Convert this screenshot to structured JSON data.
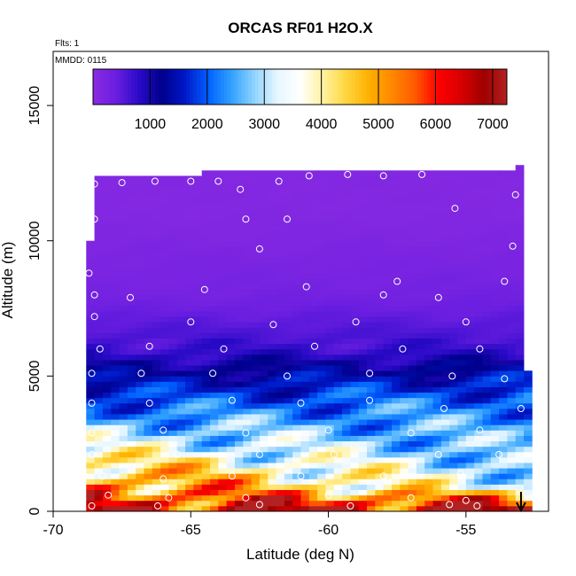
{
  "chart_data": {
    "type": "heatmap",
    "title": "ORCAS RF01 H2O.X",
    "flights_note": "Flts: 1",
    "date_note": "MMDD: 0115",
    "xlabel": "Latitude (deg N)",
    "ylabel": "Altitude (m)",
    "xlim": [
      -70,
      -52
    ],
    "ylim": [
      0,
      17000
    ],
    "x_ticks": [
      -70,
      -65,
      -60,
      -55
    ],
    "x_tick_labels": [
      "-70",
      "-65",
      "-60",
      "-55"
    ],
    "y_ticks": [
      0,
      5000,
      10000,
      15000
    ],
    "y_tick_labels": [
      "0",
      "5000",
      "10000",
      "15000"
    ],
    "colorbar": {
      "range": [
        0,
        7250
      ],
      "tick_values": [
        1000,
        2000,
        3000,
        4000,
        5000,
        6000,
        7000
      ],
      "tick_labels": [
        "1000",
        "2000",
        "3000",
        "4000",
        "5000",
        "6000",
        "7000"
      ],
      "colors": [
        "#8b2be2",
        "#6a1ee0",
        "#2a0ac8",
        "#00008b",
        "#0018c8",
        "#0060ff",
        "#30a0ff",
        "#8fd2ff",
        "#e6f6ff",
        "#ffffff",
        "#fff2a0",
        "#ffd640",
        "#ffb000",
        "#ff8800",
        "#ff5a00",
        "#ff0000",
        "#d80000",
        "#a00000",
        "#b22222"
      ]
    },
    "data_region": {
      "lat_range": [
        -68.8,
        -52.7
      ],
      "alt_top_profile": [
        {
          "lat": -68.8,
          "alt_top": 10000
        },
        {
          "lat": -68.5,
          "alt_top": 12400
        },
        {
          "lat": -64.8,
          "alt_top": 12400
        },
        {
          "lat": -64.7,
          "alt_top": 12600
        },
        {
          "lat": -53.2,
          "alt_top": 12600
        },
        {
          "lat": -53.2,
          "alt_top": 12800
        },
        {
          "lat": -53.0,
          "alt_top": 12800
        },
        {
          "lat": -53.0,
          "alt_top": 5200
        },
        {
          "lat": -52.7,
          "alt_top": 5200
        }
      ],
      "layers": [
        {
          "alt_min": 0,
          "alt_max": 300,
          "h2o_south": 6400,
          "h2o_north": 6800
        },
        {
          "alt_min": 300,
          "alt_max": 1500,
          "h2o_south": 5600,
          "h2o_north": 3200
        },
        {
          "alt_min": 1500,
          "alt_max": 3000,
          "h2o_south": 3600,
          "h2o_north": 2600
        },
        {
          "alt_min": 3000,
          "alt_max": 5000,
          "h2o_south": 1900,
          "h2o_north": 2200
        },
        {
          "alt_min": 5000,
          "alt_max": 7000,
          "h2o_south": 700,
          "h2o_north": 700
        },
        {
          "alt_min": 7000,
          "alt_max": 9000,
          "h2o_south": 250,
          "h2o_north": 300
        },
        {
          "alt_min": 9000,
          "alt_max": 13000,
          "h2o_south": 100,
          "h2o_north": 100
        }
      ]
    },
    "sample_points_approx": [
      {
        "lat": -68.5,
        "alt": 12100
      },
      {
        "lat": -67.5,
        "alt": 12150
      },
      {
        "lat": -66.3,
        "alt": 12200
      },
      {
        "lat": -65.0,
        "alt": 12200
      },
      {
        "lat": -64.0,
        "alt": 12200
      },
      {
        "lat": -63.2,
        "alt": 11900
      },
      {
        "lat": -61.8,
        "alt": 12200
      },
      {
        "lat": -60.7,
        "alt": 12400
      },
      {
        "lat": -59.3,
        "alt": 12450
      },
      {
        "lat": -58.0,
        "alt": 12400
      },
      {
        "lat": -56.6,
        "alt": 12450
      },
      {
        "lat": -55.4,
        "alt": 11200
      },
      {
        "lat": -53.2,
        "alt": 11700
      },
      {
        "lat": -68.5,
        "alt": 10800
      },
      {
        "lat": -63.0,
        "alt": 10800
      },
      {
        "lat": -61.5,
        "alt": 10800
      },
      {
        "lat": -62.5,
        "alt": 9700
      },
      {
        "lat": -53.3,
        "alt": 9800
      },
      {
        "lat": -68.7,
        "alt": 8800
      },
      {
        "lat": -57.5,
        "alt": 8500
      },
      {
        "lat": -53.6,
        "alt": 8500
      },
      {
        "lat": -68.5,
        "alt": 8000
      },
      {
        "lat": -67.2,
        "alt": 7900
      },
      {
        "lat": -64.5,
        "alt": 8200
      },
      {
        "lat": -60.8,
        "alt": 8300
      },
      {
        "lat": -58.0,
        "alt": 8000
      },
      {
        "lat": -56.0,
        "alt": 7900
      },
      {
        "lat": -68.5,
        "alt": 7200
      },
      {
        "lat": -65.0,
        "alt": 7000
      },
      {
        "lat": -62.0,
        "alt": 6900
      },
      {
        "lat": -59.0,
        "alt": 7000
      },
      {
        "lat": -55.0,
        "alt": 7000
      },
      {
        "lat": -68.3,
        "alt": 6000
      },
      {
        "lat": -66.5,
        "alt": 6100
      },
      {
        "lat": -63.8,
        "alt": 6000
      },
      {
        "lat": -60.5,
        "alt": 6100
      },
      {
        "lat": -57.3,
        "alt": 6000
      },
      {
        "lat": -54.5,
        "alt": 6000
      },
      {
        "lat": -68.6,
        "alt": 5100
      },
      {
        "lat": -66.8,
        "alt": 5100
      },
      {
        "lat": -64.2,
        "alt": 5100
      },
      {
        "lat": -61.5,
        "alt": 5000
      },
      {
        "lat": -58.5,
        "alt": 5100
      },
      {
        "lat": -55.5,
        "alt": 5000
      },
      {
        "lat": -53.6,
        "alt": 4900
      },
      {
        "lat": -68.6,
        "alt": 4000
      },
      {
        "lat": -66.5,
        "alt": 4000
      },
      {
        "lat": -63.5,
        "alt": 4100
      },
      {
        "lat": -61.0,
        "alt": 4000
      },
      {
        "lat": -58.5,
        "alt": 4100
      },
      {
        "lat": -55.8,
        "alt": 3800
      },
      {
        "lat": -53.0,
        "alt": 3800
      },
      {
        "lat": -68.6,
        "alt": 2900
      },
      {
        "lat": -66.0,
        "alt": 3000
      },
      {
        "lat": -63.0,
        "alt": 2900
      },
      {
        "lat": -60.0,
        "alt": 3000
      },
      {
        "lat": -57.0,
        "alt": 2900
      },
      {
        "lat": -54.5,
        "alt": 3000
      },
      {
        "lat": -68.6,
        "alt": 2100
      },
      {
        "lat": -65.5,
        "alt": 2100
      },
      {
        "lat": -62.5,
        "alt": 2100
      },
      {
        "lat": -59.8,
        "alt": 2100
      },
      {
        "lat": -56.0,
        "alt": 2100
      },
      {
        "lat": -53.8,
        "alt": 2100
      },
      {
        "lat": -68.2,
        "alt": 1300
      },
      {
        "lat": -66.0,
        "alt": 1200
      },
      {
        "lat": -63.5,
        "alt": 1300
      },
      {
        "lat": -61.0,
        "alt": 1300
      },
      {
        "lat": -58.0,
        "alt": 1300
      },
      {
        "lat": -55.2,
        "alt": 1400
      },
      {
        "lat": -68.0,
        "alt": 600
      },
      {
        "lat": -65.8,
        "alt": 500
      },
      {
        "lat": -63.0,
        "alt": 500
      },
      {
        "lat": -60.0,
        "alt": 600
      },
      {
        "lat": -57.0,
        "alt": 500
      },
      {
        "lat": -55.0,
        "alt": 400
      },
      {
        "lat": -68.6,
        "alt": 200
      },
      {
        "lat": -66.2,
        "alt": 200
      },
      {
        "lat": -62.5,
        "alt": 250
      },
      {
        "lat": -59.2,
        "alt": 200
      },
      {
        "lat": -55.6,
        "alt": 250
      },
      {
        "lat": -54.6,
        "alt": 200
      }
    ],
    "arrow_marker": {
      "lat": -53.0,
      "direction": "down"
    }
  }
}
